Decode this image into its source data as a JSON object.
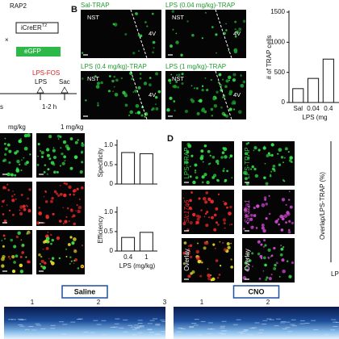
{
  "panel_a": {
    "line": "RAP2",
    "construct": "iCreER",
    "construct_sup": "T2",
    "cross": "×",
    "reporter": "eGFP",
    "protocol": "LPS-FOS",
    "injection": "LPS",
    "sacrifice": "Sac",
    "interval": "1-2 h",
    "left_fragment": "s"
  },
  "panel_b": {
    "letter": "B",
    "images": [
      {
        "title": "Sal-TRAP",
        "region": "NST",
        "ventricle": "4V"
      },
      {
        "title": "LPS (0.04 mg/kg)-TRAP",
        "region": "NST",
        "ventricle": "4V"
      },
      {
        "title": "LPS (0.4 mg/kg)-TRAP",
        "region": "NST",
        "ventricle": "4V"
      },
      {
        "title": "LPS (1 mg/kg)-TRAP",
        "region": "NST",
        "ventricle": "4V"
      }
    ]
  },
  "panel_c": {
    "columns": [
      "mg/kg",
      "1 mg/kg"
    ]
  },
  "panel_d": {
    "letter": "D",
    "rows": [
      [
        "LPS-TRAP",
        "LPS-TRAP"
      ],
      [
        "Slc17a6",
        "Slc32a1"
      ],
      [
        "Overlay",
        "Overlay"
      ]
    ],
    "chart_ylabel": "Overlap/LPS-TRAP (%)",
    "chart_xlabel": "LPS"
  },
  "panel_e": {
    "conditions": [
      {
        "label": "Saline",
        "markers": [
          "1",
          "2",
          "3"
        ]
      },
      {
        "label": "CNO",
        "markers": [
          "1",
          "2"
        ]
      }
    ]
  },
  "chart_data": [
    {
      "type": "bar",
      "ylabel": "# of TRAP cells",
      "xlabel": "LPS (mg",
      "categories": [
        "Sal",
        "0.04",
        "0.4"
      ],
      "values": [
        230,
        400,
        720
      ],
      "color": "#ffffff",
      "ylim": [
        0,
        1500
      ],
      "yticks": [
        0,
        500,
        1000,
        1500
      ]
    },
    {
      "type": "bar",
      "ylabel": "Specificity",
      "categories": [
        null,
        null
      ],
      "values": [
        0.81,
        0.78
      ],
      "color": "#ffffff",
      "ylim": [
        0,
        1.1
      ],
      "yticks": [
        0,
        0.5,
        {
          "value": 1,
          "label": "1.0"
        }
      ]
    },
    {
      "type": "bar",
      "ylabel": "Efficiency",
      "xlabel": "LPS (mg/kg)",
      "categories": [
        "0.4",
        "1"
      ],
      "values": [
        0.35,
        0.48
      ],
      "color": "#ffffff",
      "ylim": [
        0,
        1.1
      ],
      "yticks": [
        0,
        0.5,
        {
          "value": 1,
          "label": "1.0"
        }
      ]
    }
  ]
}
